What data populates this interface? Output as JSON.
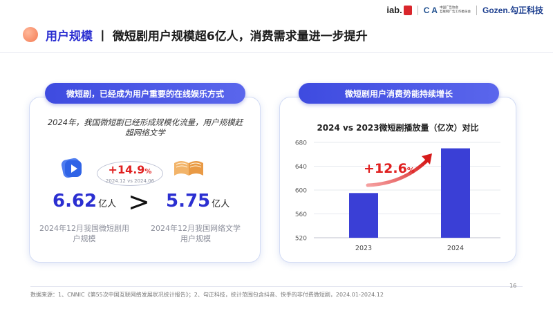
{
  "header": {
    "logo_iab": "iab.",
    "logo_cma_mark": "C A",
    "logo_cma_text_1": "中国广告协会",
    "logo_cma_text_2": "互联网广告工作委员会",
    "logo_gz": "Gozen.勾正科技"
  },
  "title": {
    "highlight": "用户规模",
    "separator": "丨",
    "rest": "微短剧用户规模超6亿人，消费需求量进一步提升"
  },
  "left_card": {
    "pill": "微短剧，已经成为用户重要的在线娱乐方式",
    "lead": "2024年，我国微短剧已经形成规模化流量，用户规模赶超网络文学",
    "growth_value": "+14.9",
    "growth_pct": "%",
    "growth_note": "2024.12 vs 2024.06",
    "metric_a_value": "6.62",
    "metric_a_unit": "亿人",
    "comparator": ">",
    "metric_b_value": "5.75",
    "metric_b_unit": "亿人",
    "caption_a": "2024年12月我国微短剧用户规模",
    "caption_b": "2024年12月我国网络文学用户规模"
  },
  "right_card": {
    "pill": "微短剧用户消费势能持续增长"
  },
  "chart_data": {
    "type": "bar",
    "title": "2024 vs 2023微短剧播放量（亿次）对比",
    "categories": [
      "2023",
      "2024"
    ],
    "values": [
      595,
      670
    ],
    "ylim": [
      520,
      680
    ],
    "yticks": [
      520,
      560,
      600,
      640,
      680
    ],
    "xlabel": "",
    "ylabel": "",
    "grid": true,
    "annotation": "+12.6",
    "annotation_unit": "%",
    "colors": {
      "bar": "#3a3fd6",
      "arrow": "#e02020"
    }
  },
  "footer": {
    "source": "数据来源：1、CNNIC《第55次中国互联网络发展状况统计报告》；2、勾正科技，统计范围包含抖音、快手的非付费微短剧，2024.01-2024.12",
    "page": "16"
  }
}
